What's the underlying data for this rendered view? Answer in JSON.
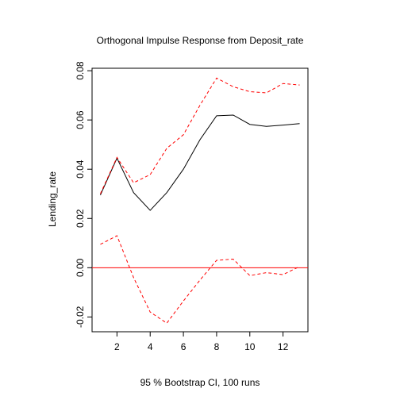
{
  "chart_data": {
    "type": "line",
    "title": "Orthogonal Impulse Response from Deposit_rate",
    "xlabel": "95 % Bootstrap CI,  100 runs",
    "ylabel": "Lending_rate",
    "xlim": [
      0.5,
      13.5
    ],
    "ylim": [
      -0.026,
      0.081
    ],
    "x_ticks": [
      2,
      4,
      6,
      8,
      10,
      12
    ],
    "x_tick_labels": [
      "2",
      "4",
      "6",
      "8",
      "10",
      "12"
    ],
    "y_ticks": [
      -0.02,
      0.0,
      0.02,
      0.04,
      0.06,
      0.08
    ],
    "y_tick_labels": [
      "-0.02",
      "0.00",
      "0.02",
      "0.04",
      "0.06",
      "0.08"
    ],
    "grid": false,
    "x": [
      1,
      2,
      3,
      4,
      5,
      6,
      7,
      8,
      9,
      10,
      11,
      12,
      13
    ],
    "series": [
      {
        "color": "#000000",
        "style": "solid",
        "values": [
          0.0295,
          0.0445,
          0.0305,
          0.0233,
          0.0305,
          0.04,
          0.052,
          0.0617,
          0.062,
          0.0582,
          0.0574,
          0.0579,
          0.0585
        ]
      },
      {
        "color": "#ff0000",
        "style": "dashed",
        "values": [
          0.03,
          0.0448,
          0.0345,
          0.0378,
          0.0485,
          0.054,
          0.066,
          0.077,
          0.0735,
          0.0715,
          0.071,
          0.0748,
          0.0742
        ]
      },
      {
        "color": "#ff0000",
        "style": "dashed",
        "values": [
          0.0095,
          0.013,
          -0.004,
          -0.018,
          -0.0225,
          -0.0135,
          -0.005,
          0.003,
          0.0035,
          -0.0032,
          -0.002,
          -0.0028,
          0.0005
        ]
      }
    ],
    "reference_line": {
      "y": 0.0,
      "color": "#ff0000"
    }
  }
}
